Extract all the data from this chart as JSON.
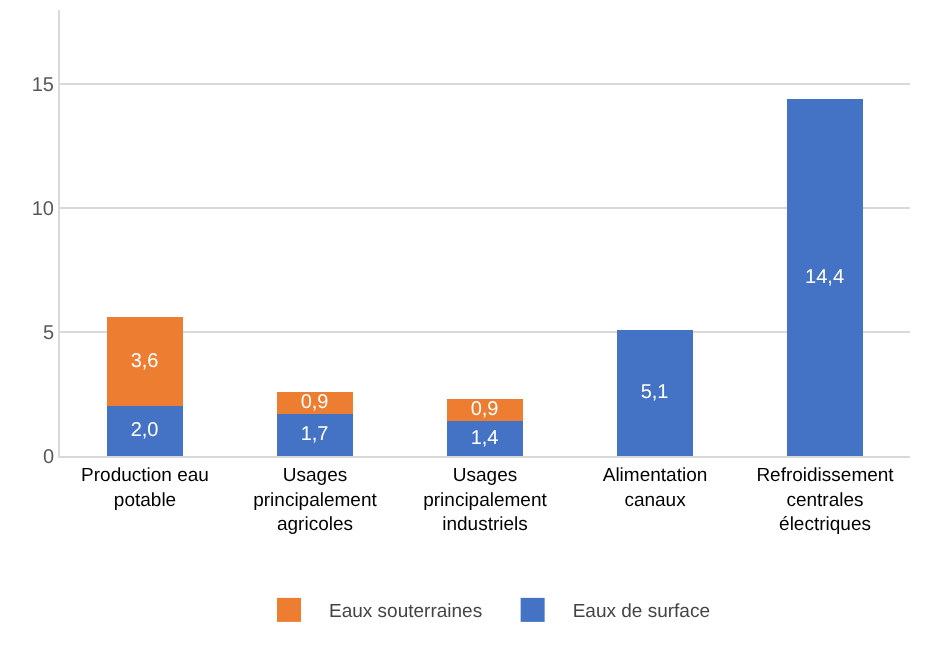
{
  "chart_data": {
    "type": "bar",
    "stacked": true,
    "categories": [
      "Production eau potable",
      "Usages principalement agricoles",
      "Usages principalement industriels",
      "Alimentation canaux",
      "Refroidissement centrales électriques"
    ],
    "series": [
      {
        "name": "Eaux de surface",
        "color": "#4472c4",
        "values": [
          2.0,
          1.7,
          1.4,
          5.1,
          14.4
        ],
        "value_labels": [
          "2,0",
          "1,7",
          "1,4",
          "5,1",
          "14,4"
        ]
      },
      {
        "name": "Eaux souterraines",
        "color": "#ed7d31",
        "values": [
          3.6,
          0.9,
          0.9,
          null,
          null
        ],
        "value_labels": [
          "3,6",
          "0,9",
          "0,9",
          null,
          null
        ]
      }
    ],
    "ylim": [
      0,
      18
    ],
    "yticks": [
      0,
      5,
      10,
      15
    ],
    "grid": "y",
    "legend": "bottom"
  }
}
